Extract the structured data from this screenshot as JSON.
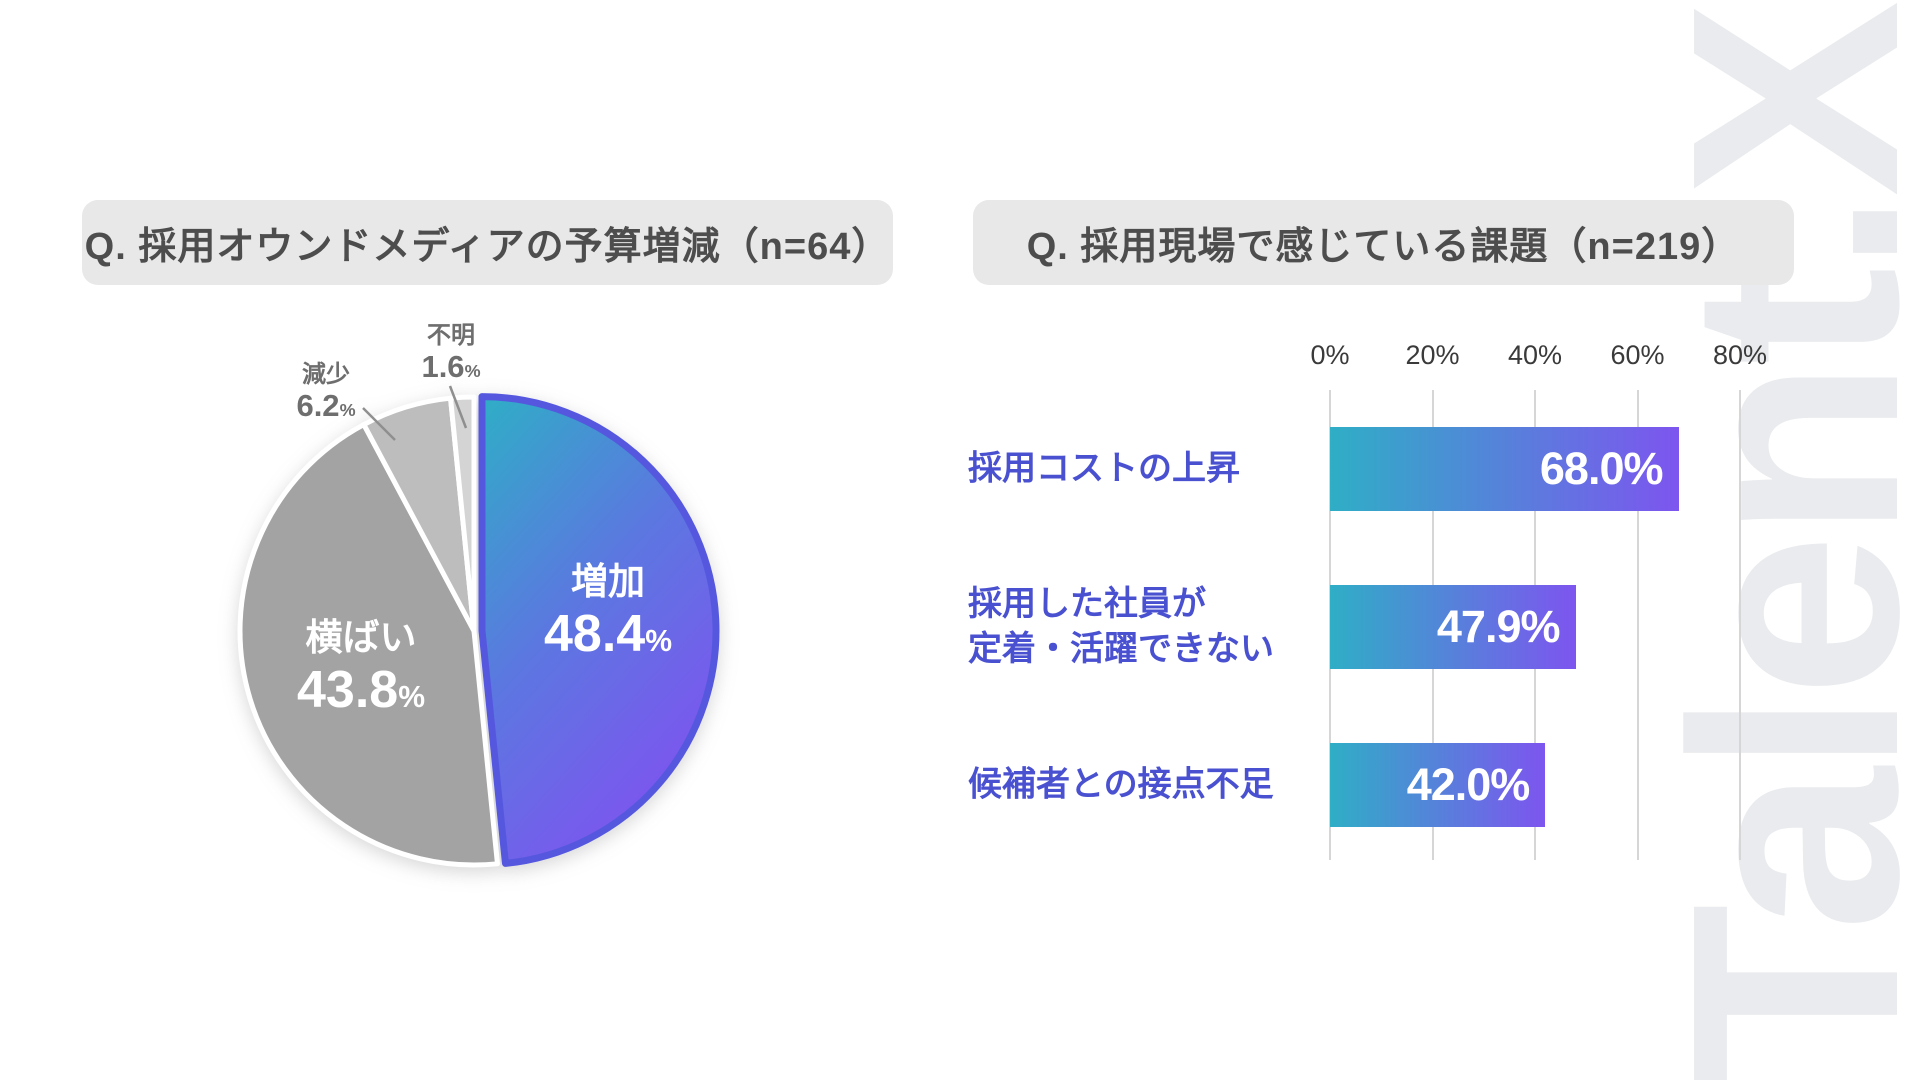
{
  "watermark": {
    "text": "Talent.X"
  },
  "colors": {
    "accent_teal": "#2FAEC6",
    "accent_purple": "#7D55EF",
    "pie_gradient_mid": "#5B78E0",
    "pie_outline": "#5558DF",
    "bar_label_indigo": "#4A51D0",
    "slice_gray_dark": "#A3A3A3",
    "slice_gray_mid": "#BDBDBD",
    "slice_gray_light": "#D4D4D4",
    "slice_gap_white": "#FFFFFF",
    "title_bg": "#E8E8E8",
    "title_text": "#4D4D4D",
    "outside_label_gray": "#6E6E6E",
    "leader_line_gray": "#8F8F8F",
    "grid_gray": "#D6D6D6",
    "watermark_gray": "#E9EBEE"
  },
  "left_panel": {
    "title": "Q. 採用オウンドメディアの予算増減（n=64）"
  },
  "right_panel": {
    "title": "Q. 採用現場で感じている課題（n=219）"
  },
  "chart_data": [
    {
      "type": "pie",
      "title": "採用オウンドメディアの予算増減",
      "n": 64,
      "unit": "%",
      "start_angle": "12-oclock-clockwise",
      "slices": [
        {
          "label": "増加",
          "value": 48.4,
          "display": "48.4",
          "color": "gradient",
          "emphasized": true
        },
        {
          "label": "横ばい",
          "value": 43.8,
          "display": "43.8",
          "color": "#A3A3A3",
          "emphasized": false
        },
        {
          "label": "減少",
          "value": 6.2,
          "display": "6.2",
          "color": "#BDBDBD",
          "emphasized": false
        },
        {
          "label": "不明",
          "value": 1.6,
          "display": "1.6",
          "color": "#D4D4D4",
          "emphasized": false
        }
      ]
    },
    {
      "type": "bar",
      "orientation": "horizontal",
      "title": "採用現場で感じている課題",
      "n": 219,
      "categories": [
        "採用コストの上昇",
        "採用した社員が\n定着・活躍できない",
        "候補者との接点不足"
      ],
      "values": [
        68.0,
        47.9,
        42.0
      ],
      "value_labels": [
        "68.0%",
        "47.9%",
        "42.0%"
      ],
      "xlabel": "",
      "ylabel": "",
      "xlim": [
        0,
        80
      ],
      "xticks": [
        "0%",
        "20%",
        "40%",
        "60%",
        "80%"
      ],
      "grid": "vertical",
      "legend": "none"
    }
  ]
}
